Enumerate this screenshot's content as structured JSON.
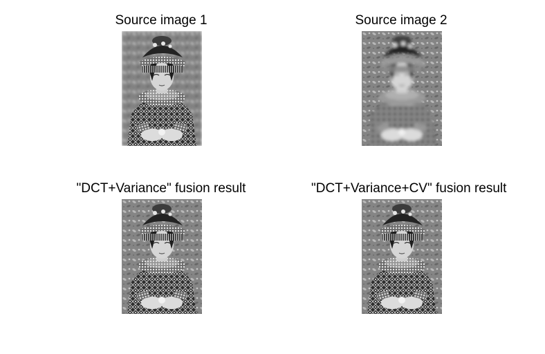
{
  "figure": {
    "panels": [
      {
        "title": "Source image 1",
        "variant": "sharp-subject"
      },
      {
        "title": "Source image 2",
        "variant": "sharp-background"
      },
      {
        "title": "\"DCT+Variance\" fusion result",
        "variant": "fused"
      },
      {
        "title": "\"DCT+Variance+CV\" fusion result",
        "variant": "fused"
      }
    ]
  }
}
